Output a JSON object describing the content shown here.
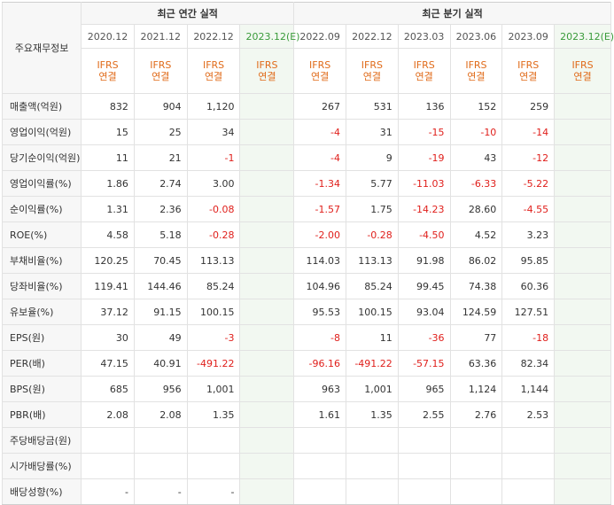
{
  "header": {
    "row_label": "주요재무정보",
    "annual_group": "최근 연간 실적",
    "quarter_group": "최근 분기 실적",
    "annual_periods": [
      "2020.12",
      "2021.12",
      "2022.12",
      "2023.12(E)"
    ],
    "quarter_periods": [
      "2022.09",
      "2022.12",
      "2023.03",
      "2023.06",
      "2023.09",
      "2023.12(E)"
    ],
    "ifrs_line1": "IFRS",
    "ifrs_line2": "연결"
  },
  "rows": [
    {
      "label": "매출액(억원)",
      "annual": [
        "832",
        "904",
        "1,120",
        ""
      ],
      "quarter": [
        "267",
        "531",
        "136",
        "152",
        "259",
        ""
      ]
    },
    {
      "label": "영업이익(억원)",
      "annual": [
        "15",
        "25",
        "34",
        ""
      ],
      "quarter": [
        "-4",
        "31",
        "-15",
        "-10",
        "-14",
        ""
      ]
    },
    {
      "label": "당기순이익(억원)",
      "annual": [
        "11",
        "21",
        "-1",
        ""
      ],
      "quarter": [
        "-4",
        "9",
        "-19",
        "43",
        "-12",
        ""
      ]
    },
    {
      "label": "영업이익률(%)",
      "annual": [
        "1.86",
        "2.74",
        "3.00",
        ""
      ],
      "quarter": [
        "-1.34",
        "5.77",
        "-11.03",
        "-6.33",
        "-5.22",
        ""
      ]
    },
    {
      "label": "순이익률(%)",
      "annual": [
        "1.31",
        "2.36",
        "-0.08",
        ""
      ],
      "quarter": [
        "-1.57",
        "1.75",
        "-14.23",
        "28.60",
        "-4.55",
        ""
      ]
    },
    {
      "label": "ROE(%)",
      "annual": [
        "4.58",
        "5.18",
        "-0.28",
        ""
      ],
      "quarter": [
        "-2.00",
        "-0.28",
        "-4.50",
        "4.52",
        "3.23",
        ""
      ]
    },
    {
      "label": "부채비율(%)",
      "annual": [
        "120.25",
        "70.45",
        "113.13",
        ""
      ],
      "quarter": [
        "114.03",
        "113.13",
        "91.98",
        "86.02",
        "95.85",
        ""
      ]
    },
    {
      "label": "당좌비율(%)",
      "annual": [
        "119.41",
        "144.46",
        "85.24",
        ""
      ],
      "quarter": [
        "104.96",
        "85.24",
        "99.45",
        "74.38",
        "60.36",
        ""
      ]
    },
    {
      "label": "유보율(%)",
      "annual": [
        "37.12",
        "91.15",
        "100.15",
        ""
      ],
      "quarter": [
        "95.53",
        "100.15",
        "93.04",
        "124.59",
        "127.51",
        ""
      ]
    },
    {
      "label": "EPS(원)",
      "annual": [
        "30",
        "49",
        "-3",
        ""
      ],
      "quarter": [
        "-8",
        "11",
        "-36",
        "77",
        "-18",
        ""
      ]
    },
    {
      "label": "PER(배)",
      "annual": [
        "47.15",
        "40.91",
        "-491.22",
        ""
      ],
      "quarter": [
        "-96.16",
        "-491.22",
        "-57.15",
        "63.36",
        "82.34",
        ""
      ]
    },
    {
      "label": "BPS(원)",
      "annual": [
        "685",
        "956",
        "1,001",
        ""
      ],
      "quarter": [
        "963",
        "1,001",
        "965",
        "1,124",
        "1,144",
        ""
      ]
    },
    {
      "label": "PBR(배)",
      "annual": [
        "2.08",
        "2.08",
        "1.35",
        ""
      ],
      "quarter": [
        "1.61",
        "1.35",
        "2.55",
        "2.76",
        "2.53",
        ""
      ]
    },
    {
      "label": "주당배당금(원)",
      "annual": [
        "",
        "",
        "",
        ""
      ],
      "quarter": [
        "",
        "",
        "",
        "",
        "",
        ""
      ]
    },
    {
      "label": "시가배당률(%)",
      "annual": [
        "",
        "",
        "",
        ""
      ],
      "quarter": [
        "",
        "",
        "",
        "",
        "",
        ""
      ]
    },
    {
      "label": "배당성향(%)",
      "annual": [
        "-",
        "-",
        "-",
        ""
      ],
      "quarter": [
        "",
        "",
        "",
        "",
        "",
        ""
      ]
    }
  ],
  "colors": {
    "negative": "#e0201c",
    "ifrs": "#e06b1a",
    "estimate_bg": "#f2f8f1",
    "estimate_text": "#3a9b3a"
  }
}
